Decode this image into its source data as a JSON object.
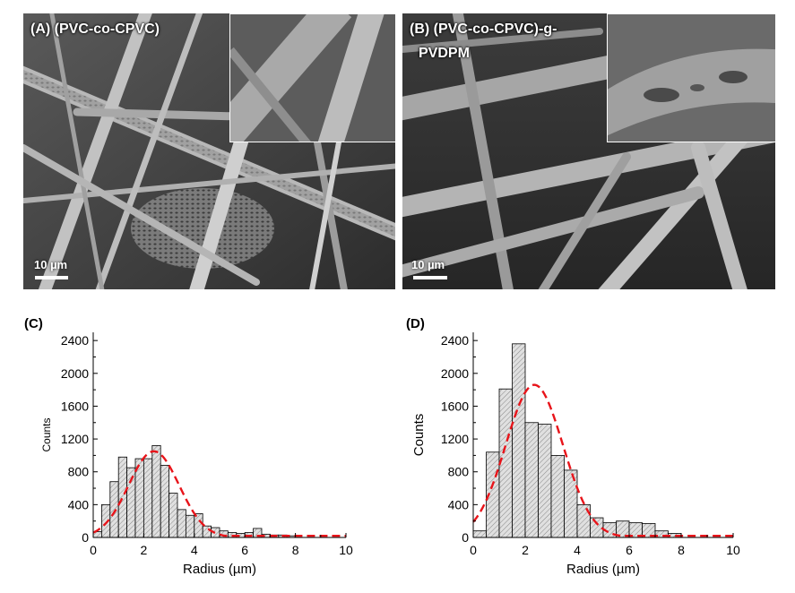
{
  "images": [
    {
      "label": "(A) (PVC-co-CPVC)",
      "scale": "10 µm"
    },
    {
      "label_line1": "(B) (PVC-co-CPVC)-g-",
      "label_line2": "PVDPM",
      "scale": "10 µm"
    }
  ],
  "chart_data": [
    {
      "panel": "(C)",
      "type": "bar",
      "xlabel": "Radius (µm)",
      "ylabel": "Counts",
      "xlim": [
        0,
        10
      ],
      "ylim": [
        0,
        2500
      ],
      "xticks": [
        0,
        2,
        4,
        6,
        8,
        10
      ],
      "yticks": [
        0,
        400,
        800,
        1200,
        1600,
        2000,
        2400
      ],
      "bin_width": 0.3333,
      "bin_start": 0.1667,
      "values": [
        70,
        400,
        680,
        980,
        850,
        960,
        960,
        1120,
        880,
        540,
        340,
        270,
        290,
        140,
        120,
        80,
        60,
        50,
        60,
        110,
        40,
        30,
        30,
        20
      ],
      "fit": {
        "type": "gaussian",
        "center": 2.4,
        "sigma": 1.0,
        "amplitude": 1050,
        "style": "red dashed"
      }
    },
    {
      "panel": "(D)",
      "type": "bar",
      "xlabel": "Radius (µm)",
      "ylabel": "Counts",
      "xlim": [
        0,
        10
      ],
      "ylim": [
        0,
        2500
      ],
      "xticks": [
        0,
        2,
        4,
        6,
        8,
        10
      ],
      "yticks": [
        0,
        400,
        800,
        1200,
        1600,
        2000,
        2400
      ],
      "bin_width": 0.5,
      "bin_start": 0.25,
      "values": [
        80,
        1040,
        1810,
        2360,
        1400,
        1380,
        1000,
        820,
        400,
        240,
        180,
        200,
        180,
        170,
        80,
        50
      ],
      "fit": {
        "type": "gaussian",
        "center": 2.35,
        "sigma": 1.1,
        "amplitude": 1860,
        "style": "red dashed"
      }
    }
  ],
  "colors": {
    "fit": "#e8141a",
    "bar_fill": "#e0e0e0",
    "bar_stroke": "#000000",
    "sem_bg": "#4a4a4a"
  }
}
